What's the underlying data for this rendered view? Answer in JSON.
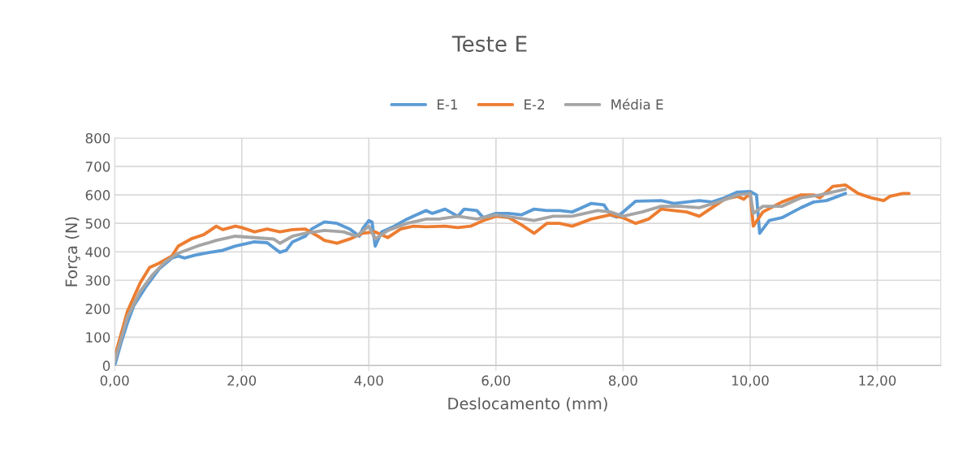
{
  "chart_data": {
    "type": "line",
    "title": "Teste E",
    "xlabel": "Deslocamento (mm)",
    "ylabel": "Força (N)",
    "xlim": [
      0,
      13
    ],
    "ylim": [
      0,
      800
    ],
    "xticks": [
      {
        "value": 0,
        "label": "0,00"
      },
      {
        "value": 2,
        "label": "2,00"
      },
      {
        "value": 4,
        "label": "4,00"
      },
      {
        "value": 6,
        "label": "6,00"
      },
      {
        "value": 8,
        "label": "8,00"
      },
      {
        "value": 10,
        "label": "10,00"
      },
      {
        "value": 12,
        "label": "12,00"
      }
    ],
    "yticks": [
      0,
      100,
      200,
      300,
      400,
      500,
      600,
      700,
      800
    ],
    "grid": true,
    "legend": "top",
    "marker": "none",
    "line_style": "solid",
    "series": [
      {
        "name": "E-1",
        "color": "#5b9bd5",
        "x": [
          0,
          0.1,
          0.2,
          0.3,
          0.5,
          0.7,
          0.9,
          1.0,
          1.1,
          1.3,
          1.5,
          1.7,
          1.9,
          2.0,
          2.2,
          2.4,
          2.5,
          2.6,
          2.7,
          2.8,
          3.0,
          3.1,
          3.3,
          3.5,
          3.7,
          3.85,
          3.9,
          4.0,
          4.05,
          4.1,
          4.2,
          4.4,
          4.6,
          4.9,
          5.0,
          5.2,
          5.4,
          5.5,
          5.7,
          5.8,
          6.0,
          6.2,
          6.4,
          6.6,
          6.8,
          7.0,
          7.2,
          7.5,
          7.7,
          7.8,
          7.9,
          8.0,
          8.2,
          8.6,
          8.8,
          9.0,
          9.2,
          9.4,
          9.6,
          9.8,
          10.0,
          10.1,
          10.15,
          10.3,
          10.5,
          10.8,
          11.0,
          11.2,
          11.5
        ],
        "values": [
          0,
          80,
          150,
          210,
          280,
          340,
          378,
          385,
          378,
          390,
          398,
          405,
          420,
          425,
          435,
          432,
          415,
          398,
          405,
          435,
          455,
          480,
          505,
          500,
          480,
          455,
          480,
          510,
          505,
          420,
          470,
          490,
          515,
          545,
          535,
          550,
          525,
          550,
          545,
          520,
          535,
          535,
          530,
          550,
          545,
          545,
          540,
          570,
          565,
          530,
          522,
          540,
          578,
          580,
          570,
          575,
          580,
          575,
          590,
          610,
          612,
          600,
          465,
          510,
          520,
          555,
          575,
          580,
          605
        ]
      },
      {
        "name": "E-2",
        "color": "#ed7d31",
        "x": [
          0,
          0.2,
          0.4,
          0.55,
          0.7,
          0.9,
          1.0,
          1.2,
          1.4,
          1.6,
          1.7,
          1.9,
          2.0,
          2.2,
          2.4,
          2.6,
          2.8,
          3.0,
          3.2,
          3.3,
          3.5,
          3.7,
          3.9,
          4.1,
          4.3,
          4.5,
          4.7,
          4.9,
          5.2,
          5.4,
          5.6,
          5.8,
          6.0,
          6.2,
          6.4,
          6.6,
          6.8,
          7.0,
          7.2,
          7.5,
          7.8,
          8.0,
          8.2,
          8.4,
          8.6,
          8.8,
          9.0,
          9.2,
          9.4,
          9.6,
          9.8,
          9.9,
          10.0,
          10.05,
          10.2,
          10.5,
          10.8,
          11.0,
          11.1,
          11.3,
          11.5,
          11.7,
          11.9,
          12.1,
          12.2,
          12.4,
          12.5
        ],
        "values": [
          30,
          190,
          290,
          345,
          360,
          385,
          420,
          445,
          460,
          490,
          478,
          490,
          485,
          470,
          480,
          470,
          478,
          480,
          455,
          440,
          430,
          445,
          465,
          470,
          450,
          480,
          490,
          488,
          490,
          485,
          490,
          510,
          525,
          520,
          495,
          465,
          500,
          500,
          490,
          515,
          530,
          520,
          500,
          515,
          550,
          545,
          540,
          525,
          555,
          585,
          595,
          585,
          605,
          490,
          540,
          575,
          600,
          600,
          590,
          630,
          635,
          605,
          590,
          580,
          595,
          605,
          605
        ]
      },
      {
        "name": "Média E",
        "color": "#a5a5a5",
        "x": [
          0,
          0.2,
          0.4,
          0.6,
          0.8,
          1.0,
          1.3,
          1.6,
          1.9,
          2.2,
          2.5,
          2.6,
          2.8,
          3.0,
          3.3,
          3.6,
          3.8,
          4.0,
          4.1,
          4.3,
          4.6,
          4.9,
          5.1,
          5.4,
          5.7,
          6.0,
          6.3,
          6.6,
          6.9,
          7.2,
          7.6,
          7.8,
          8.0,
          8.3,
          8.6,
          8.9,
          9.2,
          9.5,
          9.8,
          10.0,
          10.05,
          10.2,
          10.5,
          10.8,
          11.1,
          11.5
        ],
        "values": [
          15,
          170,
          260,
          320,
          365,
          395,
          420,
          440,
          455,
          450,
          445,
          430,
          455,
          465,
          475,
          470,
          455,
          490,
          445,
          475,
          500,
          515,
          515,
          525,
          515,
          530,
          520,
          510,
          525,
          525,
          545,
          540,
          525,
          540,
          560,
          560,
          555,
          575,
          600,
          605,
          535,
          560,
          560,
          590,
          600,
          620
        ]
      }
    ]
  }
}
